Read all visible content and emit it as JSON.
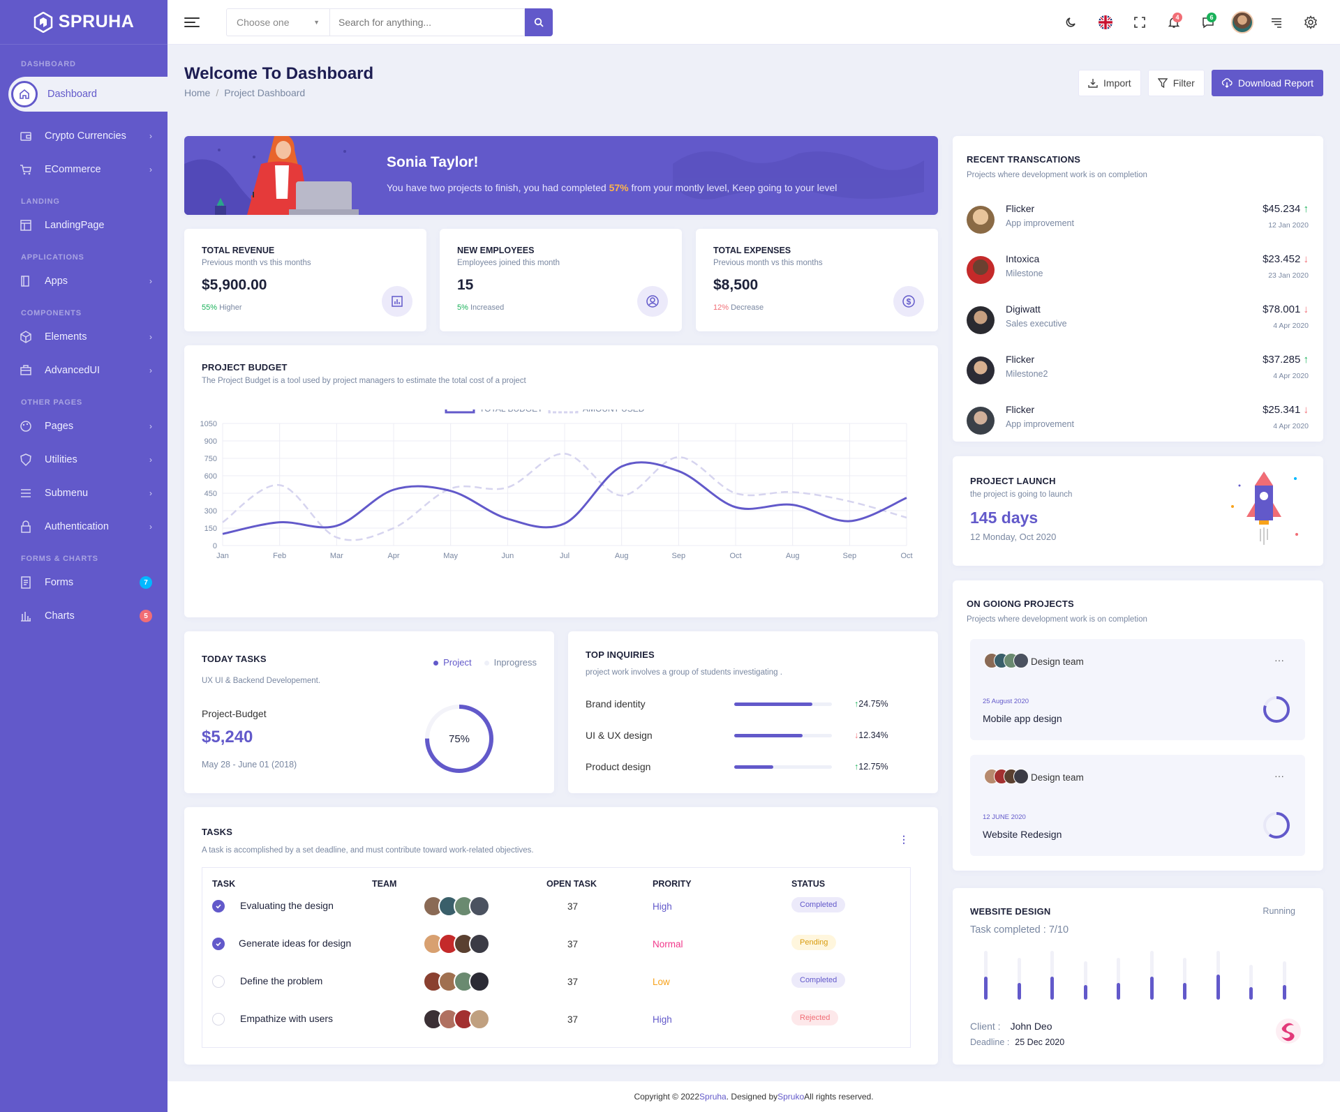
{
  "sidebar": {
    "brand": "SPRUHA",
    "sections": {
      "dashboard": "DASHBOARD",
      "landing": "LANDING",
      "applications": "APPLICATIONS",
      "components": "COMPONENTS",
      "other_pages": "OTHER PAGES",
      "forms_charts": "FORMS & CHARTS"
    },
    "items": {
      "dashboard": "Dashboard",
      "crypto": "Crypto Currencies",
      "ecommerce": "ECommerce",
      "landingpage": "LandingPage",
      "apps": "Apps",
      "elements": "Elements",
      "advancedui": "AdvancedUI",
      "pages": "Pages",
      "utilities": "Utilities",
      "submenu": "Submenu",
      "authentication": "Authentication",
      "forms": "Forms",
      "charts": "Charts"
    },
    "badges": {
      "forms": "7",
      "charts": "5"
    },
    "colors": {
      "bg": "#6259ca",
      "forms_badge": "#01b8ff",
      "charts_badge": "#f16d75"
    }
  },
  "header": {
    "select_value": "Choose one",
    "search_placeholder": "Search for anything...",
    "notification_count": "4",
    "message_count": "6",
    "icons": [
      "moon-icon",
      "flag-uk-icon",
      "fullscreen-icon",
      "bell-icon",
      "chat-icon",
      "avatar",
      "list-icon",
      "gear-icon"
    ]
  },
  "page": {
    "title": "Welcome To Dashboard",
    "breadcrumb": [
      "Home",
      "Project Dashboard"
    ],
    "buttons": {
      "import": "Import",
      "filter": "Filter",
      "download": "Download Report"
    }
  },
  "banner": {
    "name": "Sonia Taylor!",
    "text_before": "You have two projects to finish, you had completed ",
    "percent": "57%",
    "text_after": " from your montly level, Keep going to your level"
  },
  "stats": [
    {
      "title": "TOTAL REVENUE",
      "sub": "Previous month vs this months",
      "value": "$5,900.00",
      "change": "55%",
      "change_text": " Higher",
      "color": "#19b159",
      "icon": "chart-icon"
    },
    {
      "title": "NEW EMPLOYEES",
      "sub": "Employees joined this month",
      "value": "15",
      "change": "5%",
      "change_text": " Increased",
      "color": "#19b159",
      "icon": "user-icon"
    },
    {
      "title": "TOTAL EXPENSES",
      "sub": "Previous month vs this months",
      "value": "$8,500",
      "change": "12%",
      "change_text": " Decrease",
      "color": "#f16d75",
      "icon": "dollar-icon"
    }
  ],
  "budget": {
    "title": "PROJECT BUDGET",
    "sub": "The Project Budget is a tool used by project managers to estimate the total cost of a project"
  },
  "chart_data": {
    "type": "line",
    "categories": [
      "Jan",
      "Feb",
      "Mar",
      "Apr",
      "May",
      "Jun",
      "Jul",
      "Aug",
      "Sep",
      "Oct",
      "Aug",
      "Sep",
      "Oct"
    ],
    "series": [
      {
        "name": "TOTAL BUDGET",
        "values": [
          100,
          200,
          170,
          480,
          470,
          230,
          190,
          680,
          640,
          330,
          350,
          210,
          410
        ],
        "color": "#6259ca",
        "style": "solid"
      },
      {
        "name": "AMOUNT USED",
        "values": [
          200,
          520,
          70,
          150,
          490,
          500,
          790,
          430,
          760,
          450,
          460,
          380,
          240
        ],
        "color": "#d6d4ef",
        "style": "dashed"
      }
    ],
    "ylim": [
      0,
      1050
    ],
    "yticks": [
      0,
      150,
      300,
      450,
      600,
      750,
      900,
      1050
    ],
    "grid": true,
    "legend": "top-center"
  },
  "today_tasks": {
    "title": "TODAY TASKS",
    "sub": "UX UI & Backend Developement.",
    "legend": [
      "Project",
      "Inprogress"
    ],
    "label": "Project-Budget",
    "value": "$5,240",
    "date": "May 28 - June 01 (2018)",
    "percent": "75%",
    "fraction": 0.75
  },
  "inquiries": {
    "title": "TOP INQUIRIES",
    "sub": "project work involves a group of students investigating .",
    "items": [
      {
        "label": "Brand identity",
        "fill": 0.8,
        "change": "24.75%",
        "dir": "up"
      },
      {
        "label": "UI & UX design",
        "fill": 0.7,
        "change": "12.34%",
        "dir": "down"
      },
      {
        "label": "Product design",
        "fill": 0.4,
        "change": "12.75%",
        "dir": "up"
      }
    ]
  },
  "tasks": {
    "title": "TASKS",
    "sub": "A task is accomplished by a set deadline, and must contribute toward work-related objectives.",
    "headers": [
      "TASK",
      "TEAM",
      "OPEN TASK",
      "PRORITY",
      "STATUS"
    ],
    "rows": [
      {
        "task": "Evaluating the design",
        "done": true,
        "open": "37",
        "priority": "High",
        "priority_color": "#6259ca",
        "status": "Completed",
        "status_color": "#6259ca",
        "status_bg": "#eceafa"
      },
      {
        "task": "Generate ideas for design",
        "done": true,
        "open": "37",
        "priority": "Normal",
        "priority_color": "#f1388b",
        "status": "Pending",
        "status_color": "#d89a0c",
        "status_bg": "#fff6dd"
      },
      {
        "task": "Define the problem",
        "done": false,
        "open": "37",
        "priority": "Low",
        "priority_color": "#f7a21b",
        "status": "Completed",
        "status_color": "#6259ca",
        "status_bg": "#eceafa"
      },
      {
        "task": "Empathize with users",
        "done": false,
        "open": "37",
        "priority": "High",
        "priority_color": "#6259ca",
        "status": "Rejected",
        "status_color": "#f16d75",
        "status_bg": "#fde8ea"
      }
    ]
  },
  "transactions": {
    "title": "RECENT TRANSCATIONS",
    "sub": "Projects where development work is on completion",
    "items": [
      {
        "name": "Flicker",
        "sub": "App improvement",
        "amount": "$45.234",
        "date": "12 Jan 2020",
        "dir": "up"
      },
      {
        "name": "Intoxica",
        "sub": "Milestone",
        "amount": "$23.452",
        "date": "23 Jan 2020",
        "dir": "down"
      },
      {
        "name": "Digiwatt",
        "sub": "Sales executive",
        "amount": "$78.001",
        "date": "4 Apr 2020",
        "dir": "down"
      },
      {
        "name": "Flicker",
        "sub": "Milestone2",
        "amount": "$37.285",
        "date": "4 Apr 2020",
        "dir": "up"
      },
      {
        "name": "Flicker",
        "sub": "App improvement",
        "amount": "$25.341",
        "date": "4 Apr 2020",
        "dir": "down"
      }
    ]
  },
  "launch": {
    "title": "PROJECT LAUNCH",
    "sub": "the project is going to launch",
    "days": "145 days",
    "date": "12 Monday, Oct 2020"
  },
  "ongoing": {
    "title": "ON GOIONG PROJECTS",
    "sub": "Projects where development work is on completion",
    "items": [
      {
        "team": "Design team",
        "date": "25 August 2020",
        "name": "Mobile app design",
        "fraction": 0.8
      },
      {
        "team": "Design team",
        "date": "12 JUNE 2020",
        "name": "Website Redesign",
        "fraction": 0.6
      }
    ]
  },
  "website": {
    "title": "WEBSITE DESIGN",
    "status": "Running",
    "completed": "Task completed : 7/10",
    "bars": [
      0.55,
      0.4,
      0.55,
      0.35,
      0.4,
      0.55,
      0.4,
      0.6,
      0.3,
      0.35
    ],
    "client_label": "Client :",
    "client": "John Deo",
    "deadline_label": "Deadline :",
    "deadline": "25 Dec 2020"
  },
  "footer": {
    "before": "Copyright © 2022 ",
    "brand": "Spruha",
    "middle": ". Designed by ",
    "designer": "Spruko",
    "after": " All rights reserved."
  }
}
